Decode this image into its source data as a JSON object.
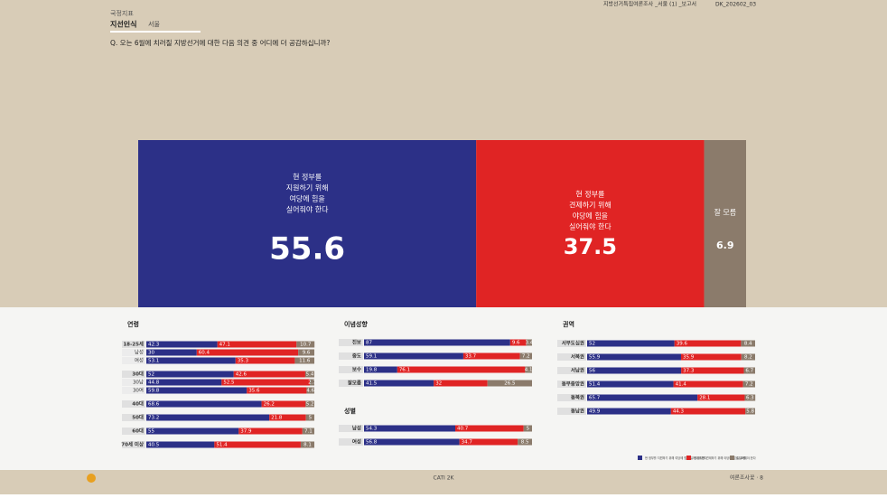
{
  "header": {
    "section": "국정지표",
    "title": "지선인식",
    "region": "서울",
    "report": "지방선거특집여론조사 _서울 (1) _보고서",
    "code": "DK_202602_03"
  },
  "question": "Q. 오는 6월에 치러질 지방선거에 대한 다음 의견 중 어디에 더 공감하십니까?",
  "overall": {
    "series": [
      {
        "label_lines": [
          "현 정부를",
          "지원하기 위해",
          "여당에 힘을",
          "실어줘야 한다"
        ],
        "color": "#2c3087",
        "value": 55.6
      },
      {
        "label_lines": [
          "현 정부를",
          "견제하기 위해",
          "야당에 힘을",
          "실어줘야 한다"
        ],
        "color": "#e02424",
        "value": 37.5
      },
      {
        "label_lines": [
          "잘 모름"
        ],
        "color": "#8b7b6b",
        "value": 6.9
      }
    ]
  },
  "panels": [
    {
      "title": "연령",
      "rows": [
        {
          "label": "18-25세",
          "values": [
            42.3,
            47.1,
            10.7
          ],
          "rows": [
            {
              "label": "남성",
              "values": [
                30.0,
                60.4,
                9.6
              ]
            },
            {
              "label": "여성",
              "values": [
                53.1,
                35.3,
                11.6
              ]
            }
          ]
        },
        {
          "label": "30대",
          "values": [
            52.0,
            42.6,
            5.4
          ],
          "rows": [
            {
              "label": "30남",
              "values": [
                44.8,
                52.5,
                2.7
              ]
            },
            {
              "label": "30여",
              "values": [
                59.8,
                35.6,
                4.6
              ]
            }
          ]
        },
        {
          "label": "40대",
          "values": [
            68.6,
            26.2,
            5.2
          ]
        },
        {
          "label": "50대",
          "values": [
            73.2,
            21.8,
            5.0
          ]
        },
        {
          "label": "60대",
          "values": [
            55.0,
            37.9,
            7.1
          ]
        },
        {
          "label": "70세 이상",
          "values": [
            40.5,
            51.4,
            8.1
          ]
        }
      ]
    },
    {
      "title": "이념성향",
      "rows": [
        {
          "label": "진보",
          "values": [
            87.0,
            9.6,
            3.4
          ]
        },
        {
          "label": "중도",
          "values": [
            59.1,
            33.7,
            7.2
          ]
        },
        {
          "label": "보수",
          "values": [
            19.8,
            76.1,
            4.1
          ]
        },
        {
          "label": "잘모름",
          "values": [
            41.5,
            32.0,
            26.5
          ]
        }
      ]
    },
    {
      "title": "성별",
      "rows": [
        {
          "label": "남성",
          "values": [
            54.3,
            40.7,
            5.0
          ]
        },
        {
          "label": "여성",
          "values": [
            56.8,
            34.7,
            8.5
          ]
        }
      ]
    },
    {
      "title": "권역",
      "rows": [
        {
          "label": "서부도심권",
          "values": [
            52.0,
            39.6,
            8.4
          ]
        },
        {
          "label": "서북권",
          "values": [
            55.9,
            35.9,
            8.2
          ]
        },
        {
          "label": "서남권",
          "values": [
            56.0,
            37.3,
            6.7
          ]
        },
        {
          "label": "동부중앙권",
          "values": [
            51.4,
            41.4,
            7.2
          ]
        },
        {
          "label": "동북권",
          "values": [
            65.7,
            28.1,
            6.3
          ]
        },
        {
          "label": "동남권",
          "values": [
            49.9,
            44.3,
            5.8
          ]
        }
      ]
    }
  ],
  "legend": [
    "현 정부를 지원하기 위해 여당에 힘을 실어줘야 한다",
    "현 정부를 견제하기 위해 야당에 힘을 실어줘야 한다",
    "잘 모름"
  ],
  "footer": {
    "center": "CATI 2K",
    "right": "여론조사꽃 · 8"
  }
}
